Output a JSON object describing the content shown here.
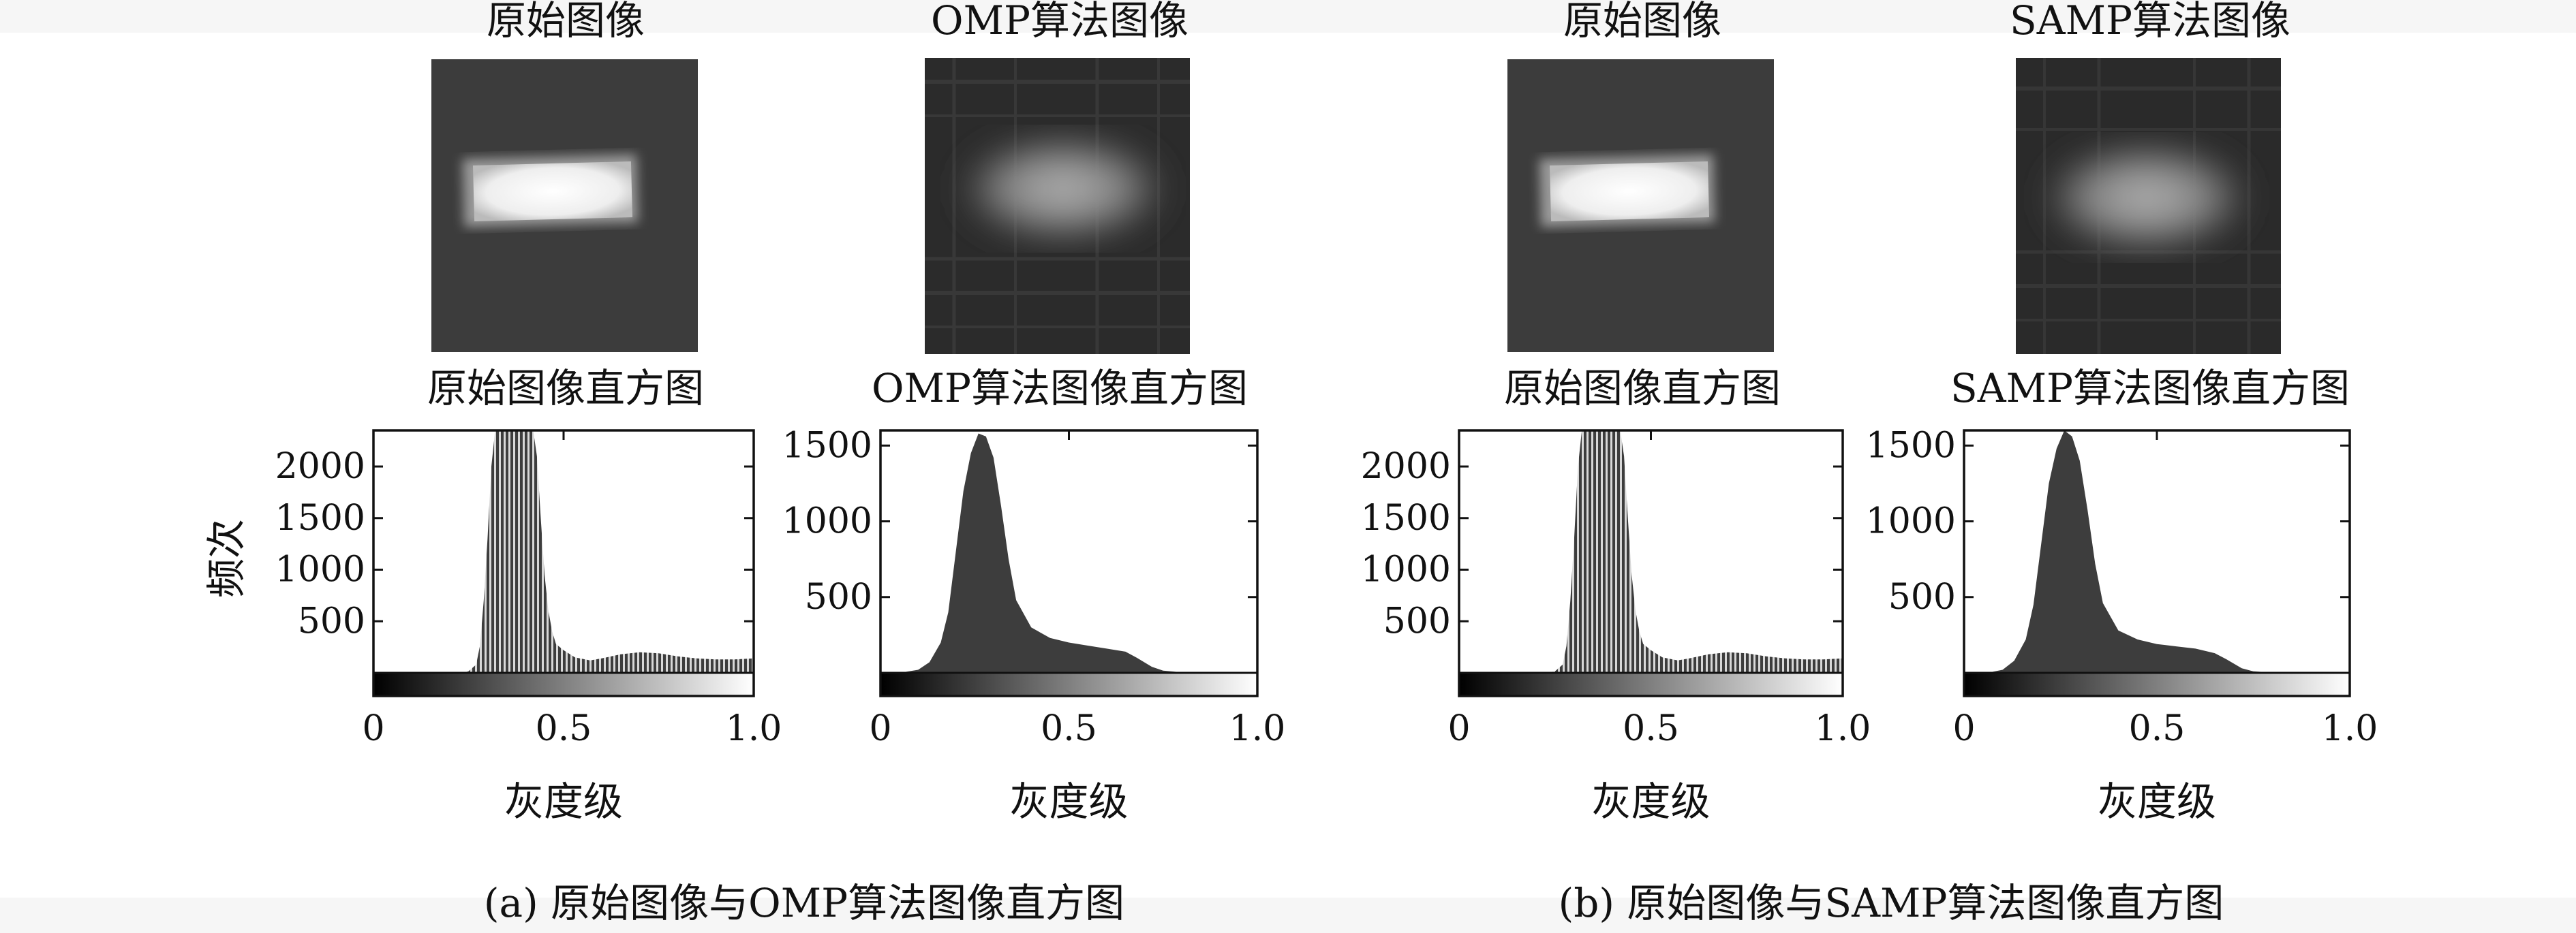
{
  "panels": [
    {
      "caption": "(a) 原始图像与OMP算法图像直方图",
      "images": [
        {
          "title": "原始图像",
          "style": "clean"
        },
        {
          "title": "OMP算法图像",
          "style": "noisy"
        }
      ]
    },
    {
      "caption": "(b) 原始图像与SAMP算法图像直方图",
      "images": [
        {
          "title": "原始图像",
          "style": "clean"
        },
        {
          "title": "SAMP算法图像",
          "style": "noisy"
        }
      ]
    }
  ],
  "colors": {
    "background": "#ffffff",
    "bar_fill": "#3d3d3d",
    "axis": "#111111",
    "image_clean_bg": "#3c3c3c",
    "image_noisy_bg": "#2a2a2a"
  },
  "chart_data": [
    {
      "type": "bar",
      "title": "原始图像直方图",
      "xlabel": "灰度级",
      "ylabel": "频次",
      "xlim": [
        0,
        1
      ],
      "ylim": [
        0,
        2350
      ],
      "xticks": [
        "0",
        "0.5",
        "1.0"
      ],
      "yticks": [
        500,
        1000,
        1500,
        2000
      ],
      "colorbar": "gray",
      "bar_style": "striped",
      "profile": [
        [
          0,
          0
        ],
        [
          0.23,
          0
        ],
        [
          0.25,
          15
        ],
        [
          0.27,
          80
        ],
        [
          0.28,
          260
        ],
        [
          0.29,
          700
        ],
        [
          0.3,
          1300
        ],
        [
          0.31,
          2000
        ],
        [
          0.32,
          2350
        ],
        [
          0.42,
          2350
        ],
        [
          0.43,
          2100
        ],
        [
          0.44,
          1500
        ],
        [
          0.45,
          950
        ],
        [
          0.46,
          600
        ],
        [
          0.47,
          400
        ],
        [
          0.48,
          280
        ],
        [
          0.5,
          220
        ],
        [
          0.53,
          150
        ],
        [
          0.57,
          120
        ],
        [
          0.6,
          140
        ],
        [
          0.65,
          180
        ],
        [
          0.7,
          200
        ],
        [
          0.75,
          190
        ],
        [
          0.8,
          160
        ],
        [
          0.85,
          140
        ],
        [
          0.9,
          130
        ],
        [
          0.95,
          130
        ],
        [
          1.0,
          140
        ]
      ]
    },
    {
      "type": "area",
      "title": "OMP算法图像直方图",
      "xlabel": "灰度级",
      "ylabel": "",
      "xlim": [
        0,
        1
      ],
      "ylim": [
        0,
        1600
      ],
      "xticks": [
        "0",
        "0.5",
        "1.0"
      ],
      "yticks": [
        500,
        1000,
        1500
      ],
      "colorbar": "gray",
      "bar_style": "solid",
      "profile": [
        [
          0,
          0
        ],
        [
          0.05,
          0
        ],
        [
          0.1,
          20
        ],
        [
          0.13,
          70
        ],
        [
          0.16,
          200
        ],
        [
          0.18,
          400
        ],
        [
          0.2,
          800
        ],
        [
          0.22,
          1200
        ],
        [
          0.24,
          1450
        ],
        [
          0.26,
          1580
        ],
        [
          0.28,
          1560
        ],
        [
          0.3,
          1420
        ],
        [
          0.32,
          1100
        ],
        [
          0.34,
          750
        ],
        [
          0.36,
          480
        ],
        [
          0.4,
          300
        ],
        [
          0.45,
          230
        ],
        [
          0.5,
          200
        ],
        [
          0.55,
          180
        ],
        [
          0.6,
          160
        ],
        [
          0.65,
          140
        ],
        [
          0.68,
          100
        ],
        [
          0.72,
          40
        ],
        [
          0.75,
          15
        ],
        [
          0.8,
          3
        ],
        [
          0.85,
          0
        ],
        [
          1.0,
          0
        ]
      ]
    },
    {
      "type": "bar",
      "title": "原始图像直方图",
      "xlabel": "灰度级",
      "ylabel": "",
      "xlim": [
        0,
        1
      ],
      "ylim": [
        0,
        2350
      ],
      "xticks": [
        "0",
        "0.5",
        "1.0"
      ],
      "yticks": [
        500,
        1000,
        1500,
        2000
      ],
      "colorbar": "gray",
      "bar_style": "striped",
      "profile": [
        [
          0,
          0
        ],
        [
          0.23,
          0
        ],
        [
          0.25,
          15
        ],
        [
          0.27,
          80
        ],
        [
          0.28,
          260
        ],
        [
          0.29,
          700
        ],
        [
          0.3,
          1300
        ],
        [
          0.31,
          2000
        ],
        [
          0.32,
          2350
        ],
        [
          0.42,
          2350
        ],
        [
          0.43,
          2100
        ],
        [
          0.44,
          1500
        ],
        [
          0.45,
          950
        ],
        [
          0.46,
          600
        ],
        [
          0.47,
          400
        ],
        [
          0.48,
          280
        ],
        [
          0.5,
          220
        ],
        [
          0.53,
          150
        ],
        [
          0.57,
          120
        ],
        [
          0.6,
          140
        ],
        [
          0.65,
          180
        ],
        [
          0.7,
          200
        ],
        [
          0.75,
          190
        ],
        [
          0.8,
          160
        ],
        [
          0.85,
          140
        ],
        [
          0.9,
          130
        ],
        [
          0.95,
          130
        ],
        [
          1.0,
          140
        ]
      ]
    },
    {
      "type": "area",
      "title": "SAMP算法图像直方图",
      "xlabel": "灰度级",
      "ylabel": "",
      "xlim": [
        0,
        1
      ],
      "ylim": [
        0,
        1600
      ],
      "xticks": [
        "0",
        "0.5",
        "1.0"
      ],
      "yticks": [
        500,
        1000,
        1500
      ],
      "colorbar": "gray",
      "bar_style": "solid",
      "profile": [
        [
          0,
          0
        ],
        [
          0.06,
          0
        ],
        [
          0.1,
          20
        ],
        [
          0.13,
          80
        ],
        [
          0.16,
          220
        ],
        [
          0.18,
          450
        ],
        [
          0.2,
          850
        ],
        [
          0.22,
          1250
        ],
        [
          0.24,
          1480
        ],
        [
          0.26,
          1600
        ],
        [
          0.28,
          1560
        ],
        [
          0.3,
          1400
        ],
        [
          0.32,
          1080
        ],
        [
          0.34,
          720
        ],
        [
          0.36,
          460
        ],
        [
          0.4,
          280
        ],
        [
          0.45,
          220
        ],
        [
          0.5,
          190
        ],
        [
          0.55,
          175
        ],
        [
          0.6,
          160
        ],
        [
          0.65,
          130
        ],
        [
          0.68,
          90
        ],
        [
          0.72,
          30
        ],
        [
          0.75,
          10
        ],
        [
          0.8,
          2
        ],
        [
          0.85,
          0
        ],
        [
          1.0,
          0
        ]
      ]
    }
  ]
}
